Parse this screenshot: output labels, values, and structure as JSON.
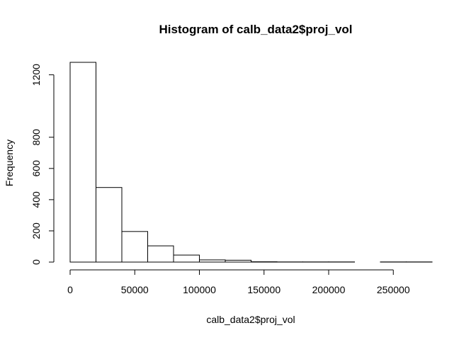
{
  "chart_data": {
    "type": "bar",
    "title": "Histogram of calb_data2$proj_vol",
    "xlabel": "calb_data2$proj_vol",
    "ylabel": "Frequency",
    "bin_edges": [
      0,
      20000,
      40000,
      60000,
      80000,
      100000,
      120000,
      140000,
      160000,
      180000,
      200000,
      220000,
      240000,
      260000,
      280000
    ],
    "counts": [
      1280,
      478,
      196,
      104,
      45,
      14,
      12,
      2,
      1,
      1,
      1,
      0,
      1,
      1
    ],
    "xticks": [
      0,
      50000,
      100000,
      150000,
      200000,
      250000
    ],
    "yticks": [
      0,
      200,
      400,
      600,
      800,
      1200
    ],
    "xlim": [
      0,
      280000
    ],
    "ylim": [
      0,
      1280
    ],
    "grid": false,
    "legend": "none"
  }
}
